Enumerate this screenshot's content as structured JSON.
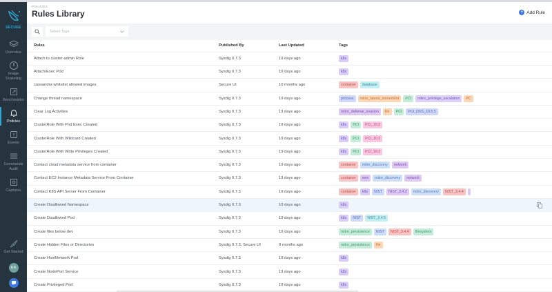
{
  "sidebar": {
    "brand": "SECURE",
    "items": [
      {
        "label": "Overview",
        "icon": "layers-icon",
        "active": false
      },
      {
        "label": "Image Scanning",
        "icon": "scan-icon",
        "active": false
      },
      {
        "label": "Benchmarks",
        "icon": "benchmarks-icon",
        "active": false
      },
      {
        "label": "Policies",
        "icon": "bell-icon",
        "active": true
      },
      {
        "label": "Events",
        "icon": "events-icon",
        "active": false
      },
      {
        "label": "Commands Audit",
        "icon": "list-icon",
        "active": false
      },
      {
        "label": "Captures",
        "icon": "capture-icon",
        "active": false
      }
    ],
    "get_started": "Get Started",
    "avatar_initials": "KA"
  },
  "header": {
    "breadcrumb": "POLICIES",
    "title": "Rules Library",
    "add_rule_label": "Add Rule"
  },
  "filter": {
    "tags_placeholder": "Select Tags"
  },
  "table": {
    "columns": [
      "Rules",
      "Published By",
      "Last Updated",
      "Tags"
    ],
    "rows": [
      {
        "rule": "Attach to cluster-admin Role",
        "published_by": "Sysdig 0.7.3",
        "updated": "19 days ago",
        "tags": [
          "k8s"
        ]
      },
      {
        "rule": "Attach/Exec Pod",
        "published_by": "Sysdig 0.7.3",
        "updated": "19 days ago",
        "tags": [
          "k8s"
        ]
      },
      {
        "rule": "cassandra whitelist allowed images",
        "published_by": "Secure UI",
        "updated": "10 months ago",
        "tags": [
          "container",
          "database"
        ]
      },
      {
        "rule": "Change thread namespace",
        "published_by": "Sysdig 0.7.3",
        "updated": "19 days ago",
        "tags": [
          "process",
          "mitre_lateral_movement",
          "PCI",
          "mitre_privilege_escalation",
          "PC"
        ]
      },
      {
        "rule": "Clear Log Activities",
        "published_by": "Sysdig 0.7.3",
        "updated": "19 days ago",
        "tags": [
          "mitre_defense_evasion",
          "file",
          "PCI",
          "PCI_DSS_10.5.5"
        ]
      },
      {
        "rule": "ClusterRole With Pod Exec Created",
        "published_by": "Sysdig 0.7.3",
        "updated": "19 days ago",
        "tags": [
          "k8s",
          "PCI",
          "PCI_10.2"
        ]
      },
      {
        "rule": "ClusterRole With Wildcard Created",
        "published_by": "Sysdig 0.7.3",
        "updated": "19 days ago",
        "tags": [
          "k8s",
          "PCI",
          "PCI_10.2"
        ]
      },
      {
        "rule": "ClusterRole With Write Privileges Created",
        "published_by": "Sysdig 0.7.3",
        "updated": "19 days ago",
        "tags": [
          "k8s",
          "PCI",
          "PCI_10.2"
        ]
      },
      {
        "rule": "Contact cloud metadata service from container",
        "published_by": "Sysdig 0.7.3",
        "updated": "19 days ago",
        "tags": [
          "container",
          "mitre_discovery",
          "network"
        ]
      },
      {
        "rule": "Contact EC2 Instance Metadata Service From Container",
        "published_by": "Sysdig 0.7.3",
        "updated": "19 days ago",
        "tags": [
          "container",
          "aws",
          "mitre_discovery",
          "network"
        ]
      },
      {
        "rule": "Contact K8S API Server From Container",
        "published_by": "Sysdig 0.7.3",
        "updated": "19 days ago",
        "tags": [
          "container",
          "k8s",
          "NIST",
          "NIST_3.4.2",
          "mitre_discovery",
          "NIST_3.4.4",
          ""
        ]
      },
      {
        "rule": "Create Disallowed Namespace",
        "published_by": "Sysdig 0.7.3",
        "updated": "19 days ago",
        "tags": [
          "k8s"
        ],
        "hover": true
      },
      {
        "rule": "Create Disallowed Pod",
        "published_by": "Sysdig 0.7.3",
        "updated": "19 days ago",
        "tags": [
          "k8s",
          "NIST",
          "NIST_3.4.5"
        ]
      },
      {
        "rule": "Create files below dev",
        "published_by": "Sysdig 0.7.3",
        "updated": "19 days ago",
        "tags": [
          "mitre_persistence",
          "NIST",
          "NIST_3.4.4",
          "filesystem"
        ]
      },
      {
        "rule": "Create Hidden Files or Directories",
        "published_by": "Sysdig 0.7.3, Secure UI",
        "updated": "9 months ago",
        "tags": [
          "mitre_persistence",
          "file"
        ]
      },
      {
        "rule": "Create HostNetwork Pod",
        "published_by": "Sysdig 0.7.3",
        "updated": "19 days ago",
        "tags": [
          "k8s"
        ]
      },
      {
        "rule": "Create NodePort Service",
        "published_by": "Sysdig 0.7.3",
        "updated": "19 days ago",
        "tags": [
          "k8s"
        ]
      },
      {
        "rule": "Create Privileged Pod",
        "published_by": "Sysdig 0.7.3",
        "updated": "19 days ago",
        "tags": [
          "k8s"
        ]
      }
    ]
  },
  "tag_colors": {
    "k8s": {
      "bg": "#d9cdf7",
      "fg": "#6b55b8"
    },
    "container": {
      "bg": "#f7c3c3",
      "fg": "#b75050"
    },
    "database": {
      "bg": "#c3eef2",
      "fg": "#3a8f99"
    },
    "process": {
      "bg": "#cfd8f9",
      "fg": "#5566b8"
    },
    "mitre_lateral_movement": {
      "bg": "#fbd7b7",
      "fg": "#b8743a"
    },
    "PCI": {
      "bg": "#c4ecd9",
      "fg": "#3f9a6c"
    },
    "mitre_privilege_escalation": {
      "bg": "#ddd1f7",
      "fg": "#6b55b8"
    },
    "PC": {
      "bg": "#fbd7b7",
      "fg": "#b8743a"
    },
    "mitre_defense_evasion": {
      "bg": "#ddc9f3",
      "fg": "#7a4fb0"
    },
    "file": {
      "bg": "#fbd7b7",
      "fg": "#b8743a"
    },
    "PCI_DSS_10.5.5": {
      "bg": "#cfd8f9",
      "fg": "#5566b8"
    },
    "PCI_10.2": {
      "bg": "#f8c6df",
      "fg": "#b84f82"
    },
    "mitre_discovery": {
      "bg": "#cfe0f9",
      "fg": "#5577b8"
    },
    "network": {
      "bg": "#ddc9f3",
      "fg": "#7a4fb0"
    },
    "aws": {
      "bg": "#ddc9f3",
      "fg": "#7a4fb0"
    },
    "NIST": {
      "bg": "#cfdcf9",
      "fg": "#5566b8"
    },
    "NIST_3.4.2": {
      "bg": "#ddc9f3",
      "fg": "#7a4fb0"
    },
    "NIST_3.4.4": {
      "bg": "#f7c3c3",
      "fg": "#b75050"
    },
    "NIST_3.4.5": {
      "bg": "#c3eef2",
      "fg": "#3a8f99"
    },
    "mitre_persistence": {
      "bg": "#c4ecd9",
      "fg": "#3f9a6c"
    },
    "filesystem": {
      "bg": "#c4ecd9",
      "fg": "#3f9a6c"
    },
    "": {
      "bg": "#ddc9f3",
      "fg": "#7a4fb0"
    }
  },
  "colors": {
    "sidebar_bg": "#26343f",
    "accent": "#2fa8d6",
    "primary_button": "#3c7be6",
    "row_hover": "#eef5fc"
  }
}
